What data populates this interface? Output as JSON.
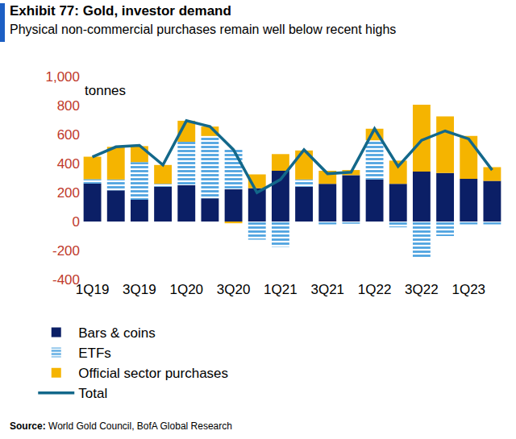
{
  "chart_data": {
    "type": "bar",
    "title": "Exhibit 77: Gold, investor demand",
    "subtitle": "Physical non-commercial purchases remain well below recent highs",
    "ylabel": "tonnes",
    "source": "Source: World Gold Council, BofA Global Research",
    "categories": [
      "1Q19",
      null,
      "3Q19",
      null,
      "1Q20",
      null,
      "3Q20",
      null,
      "1Q21",
      null,
      "3Q21",
      null,
      "1Q22",
      null,
      "3Q22",
      null,
      "1Q23",
      null
    ],
    "series": [
      {
        "name": "Bars & coins",
        "type": "bar",
        "color": "#0b1f66",
        "values": [
          262,
          215,
          150,
          240,
          250,
          160,
          222,
          230,
          350,
          240,
          260,
          320,
          290,
          260,
          345,
          335,
          295,
          280
        ]
      },
      {
        "name": "ETFs",
        "type": "bar",
        "color": "#4ea3e0",
        "marker": "striped",
        "values": [
          30,
          75,
          260,
          20,
          300,
          430,
          280,
          -125,
          -175,
          50,
          -20,
          -15,
          270,
          -40,
          -245,
          -100,
          -20,
          -20
        ]
      },
      {
        "name": "Official sector purchases",
        "type": "bar",
        "color": "#f5b400",
        "values": [
          155,
          225,
          110,
          130,
          145,
          65,
          -12,
          95,
          115,
          200,
          90,
          35,
          80,
          160,
          460,
          390,
          295,
          95
        ]
      },
      {
        "name": "Total",
        "type": "line",
        "color": "#13688a",
        "line_style": "solid",
        "values": [
          445,
          515,
          525,
          390,
          695,
          655,
          495,
          200,
          290,
          495,
          330,
          340,
          640,
          380,
          560,
          625,
          570,
          355
        ]
      }
    ],
    "stacked": true,
    "grid": false,
    "legend": "bottom",
    "ylim": [
      -400,
      1000
    ],
    "yticks": [
      -400,
      -200,
      0,
      200,
      400,
      600,
      800,
      {
        "value": 1000,
        "label": "1,000"
      }
    ]
  }
}
